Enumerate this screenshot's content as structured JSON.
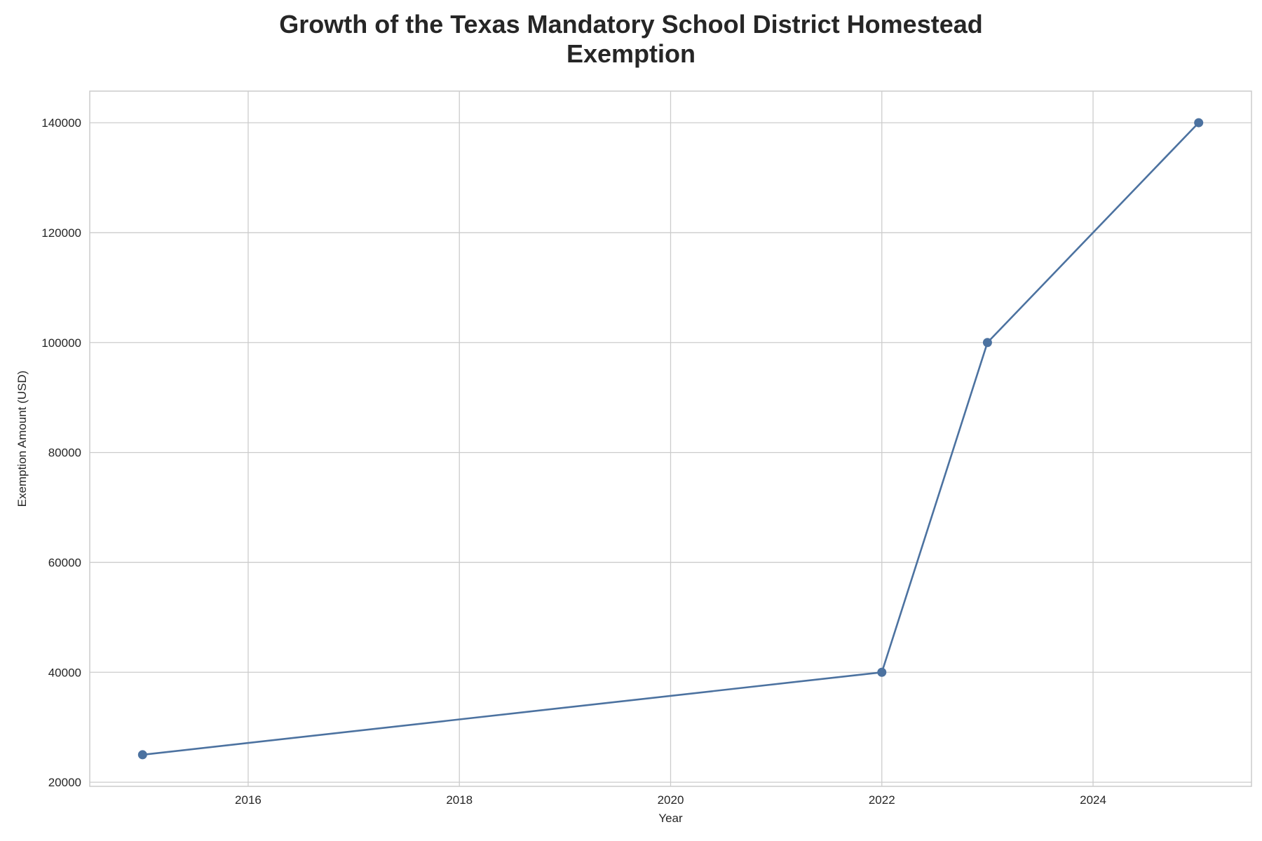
{
  "chart_data": {
    "type": "line",
    "title": "Growth of the Texas Mandatory School District Homestead Exemption",
    "xlabel": "Year",
    "ylabel": "Exemption Amount (USD)",
    "x": [
      2015,
      2022,
      2023,
      2025
    ],
    "series": [
      {
        "values": [
          25000,
          40000,
          100000,
          140000
        ]
      }
    ],
    "xlim": [
      2014.5,
      2025.5
    ],
    "ylim": [
      19250,
      145750
    ],
    "xticks": [
      2016,
      2018,
      2020,
      2022,
      2024
    ],
    "yticks": [
      20000,
      40000,
      60000,
      80000,
      100000,
      120000,
      140000
    ],
    "grid": true,
    "legend": "none",
    "line_color": "#4c72a0",
    "grid_color": "#cccccc",
    "spine_color": "#cccccc"
  }
}
